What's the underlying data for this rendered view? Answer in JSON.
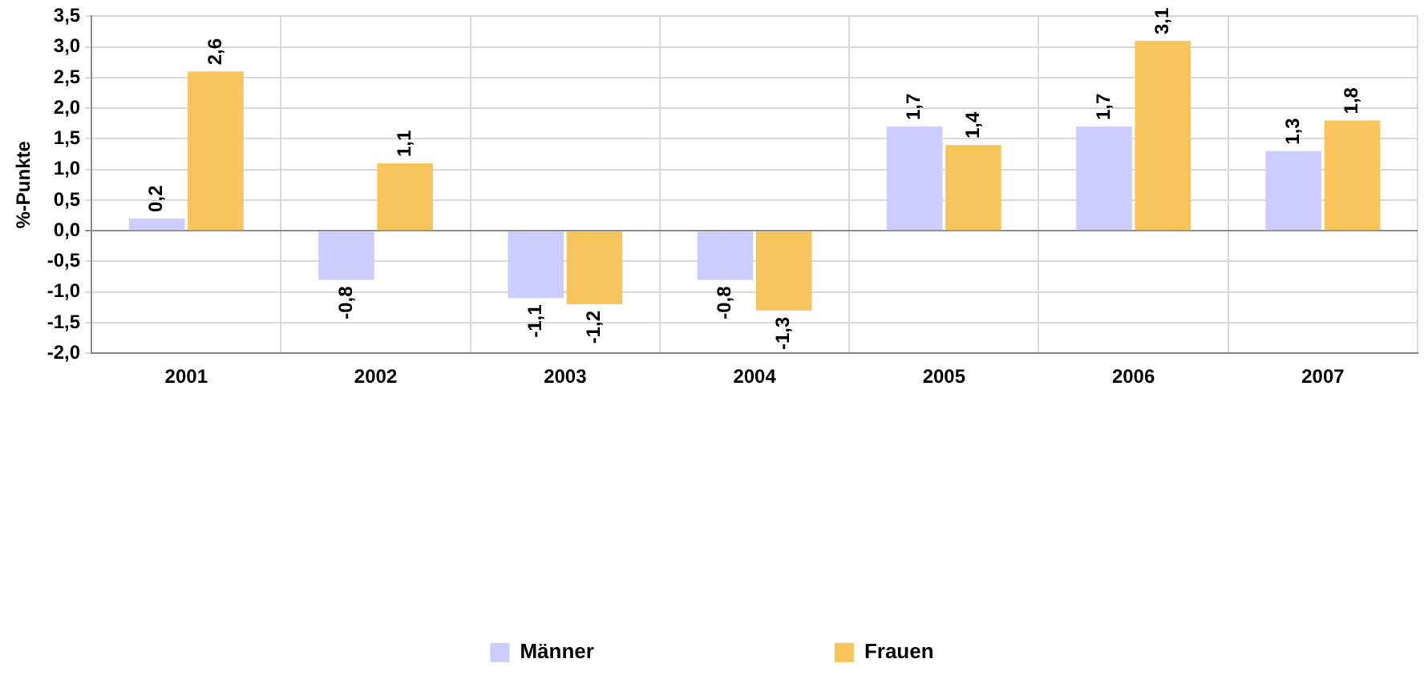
{
  "chart_data": {
    "type": "bar",
    "ylabel": "%-Punkte",
    "categories": [
      "2001",
      "2002",
      "2003",
      "2004",
      "2005",
      "2006",
      "2007"
    ],
    "series": [
      {
        "name": "Männer",
        "color": "#ccccff",
        "values": [
          0.2,
          -0.8,
          -1.1,
          -0.8,
          1.7,
          1.7,
          1.3
        ],
        "value_labels": [
          "0,2",
          "-0,8",
          "-1,1",
          "-0,8",
          "1,7",
          "1,7",
          "1,3"
        ]
      },
      {
        "name": "Frauen",
        "color": "#f8c45c",
        "values": [
          2.6,
          1.1,
          -1.2,
          -1.3,
          1.4,
          3.1,
          1.8
        ],
        "value_labels": [
          "2,6",
          "1,1",
          "-1,2",
          "-1,3",
          "1,4",
          "3,1",
          "1,8"
        ]
      }
    ],
    "ylim": [
      -2,
      3.5
    ],
    "yticks": [
      {
        "value": -2,
        "label": "-2,0"
      },
      {
        "value": -1.5,
        "label": "-1,5"
      },
      {
        "value": -1,
        "label": "-1,0"
      },
      {
        "value": -0.5,
        "label": "-0,5"
      },
      {
        "value": 0,
        "label": "0,0"
      },
      {
        "value": 0.5,
        "label": "0,5"
      },
      {
        "value": 1,
        "label": "1,0"
      },
      {
        "value": 1.5,
        "label": "1,5"
      },
      {
        "value": 2,
        "label": "2,0"
      },
      {
        "value": 2.5,
        "label": "2,5"
      },
      {
        "value": 3,
        "label": "3,0"
      },
      {
        "value": 3.5,
        "label": "3,5"
      }
    ],
    "grid": true,
    "legend": "bottom"
  }
}
